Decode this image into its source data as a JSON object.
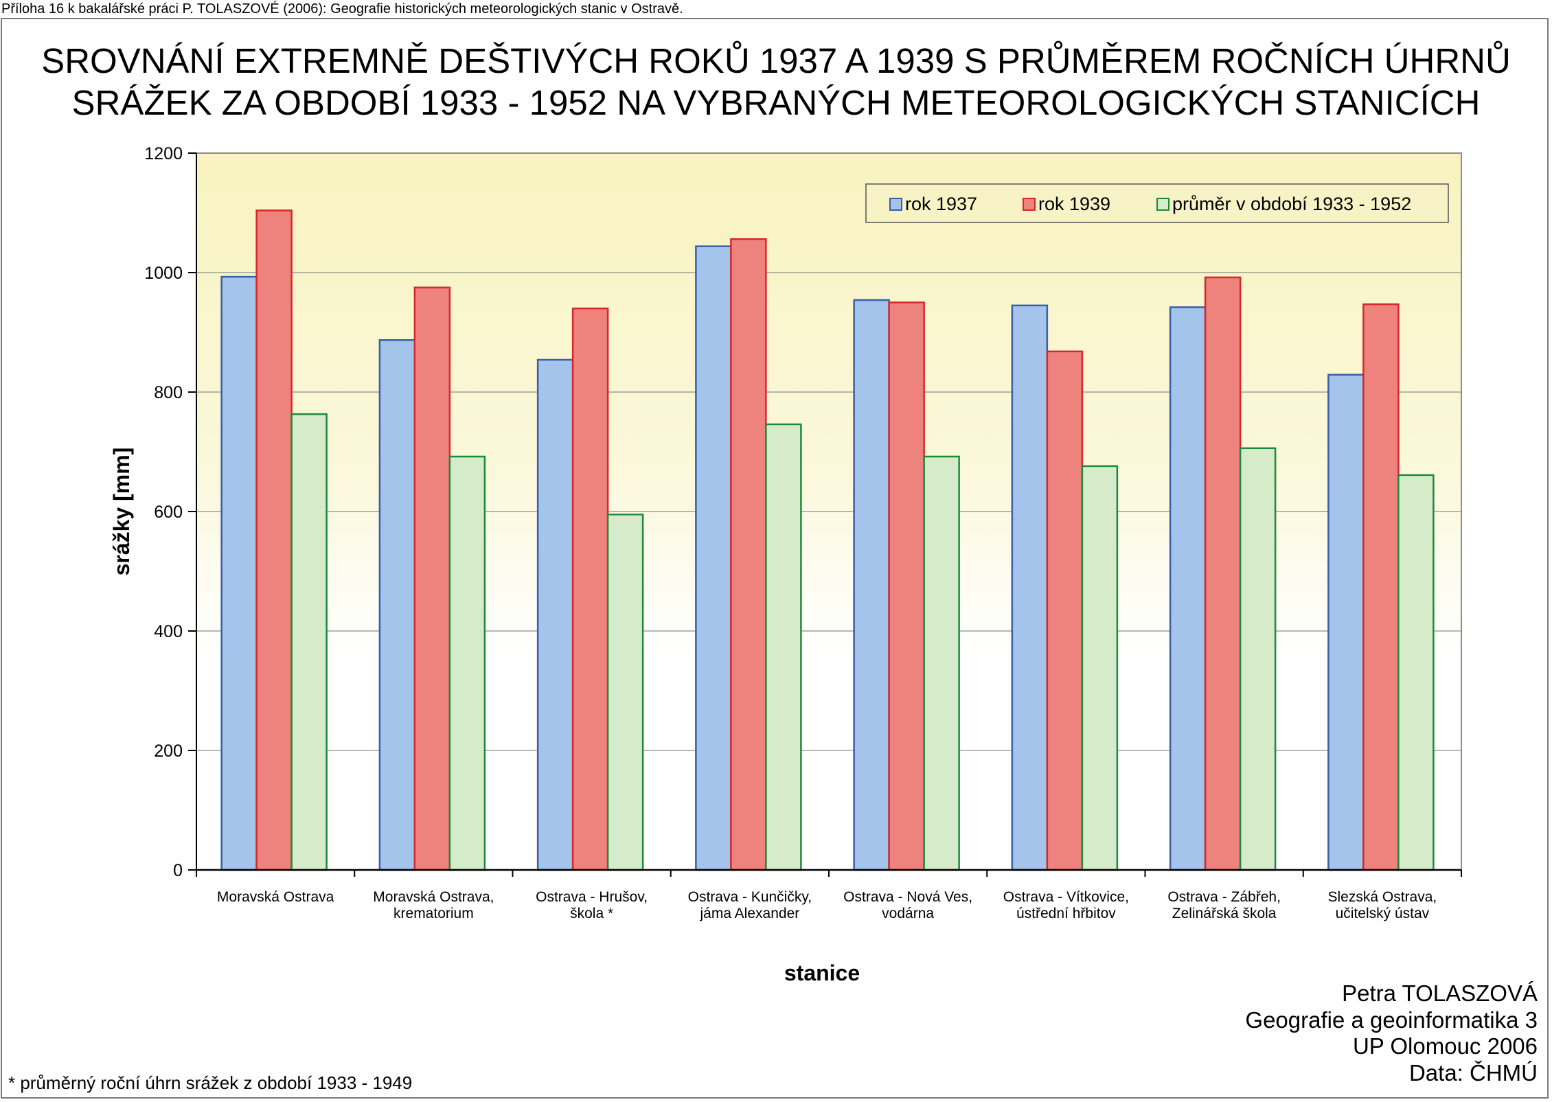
{
  "header_note": "Příloha 16 k bakalářské práci P. TOLASZOVÉ (2006): Geografie historických meteorologických stanic v Ostravě.",
  "title_lines": [
    "SROVNÁNÍ EXTREMNĚ DEŠTIVÝCH ROKŮ 1937 A 1939 S PRŮMĚREM ROČNÍCH ÚHRNŮ",
    "SRÁŽEK ZA OBDOBÍ 1933 - 1952 NA VYBRANÝCH METEOROLOGICKÝCH STANICÍCH"
  ],
  "author_lines": [
    "Petra TOLASZOVÁ",
    "Geografie a geoinformatika 3",
    "UP Olomouc 2006",
    "Data: ČHMÚ"
  ],
  "footnote": "* průměrný roční úhrn srážek z období 1933 - 1949",
  "colors": {
    "plot_bg_top": "#f8f3bf",
    "plot_bg_bottom": "#ffffff",
    "gridline": "#8c8c8c"
  },
  "chart_data": {
    "type": "bar",
    "title": "SROVNÁNÍ EXTREMNĚ DEŠTIVÝCH ROKŮ 1937 A 1939 S PRŮMĚREM ROČNÍCH ÚHRNŮ SRÁŽEK ZA OBDOBÍ 1933 - 1952 NA VYBRANÝCH METEOROLOGICKÝCH STANICÍCH",
    "xlabel": "stanice",
    "ylabel": "srážky [mm]",
    "ylim": [
      0,
      1200
    ],
    "yticks": [
      0,
      200,
      400,
      600,
      800,
      1000,
      1200
    ],
    "grid": true,
    "legend_position": "top-right",
    "categories": [
      [
        "Moravská Ostrava"
      ],
      [
        "Moravská Ostrava,",
        "krematorium"
      ],
      [
        "Ostrava - Hrušov,",
        "škola *"
      ],
      [
        "Ostrava - Kunčičky,",
        "jáma Alexander"
      ],
      [
        "Ostrava - Nová Ves,",
        "vodárna"
      ],
      [
        "Ostrava - Vítkovice,",
        "ústřední hřbitov"
      ],
      [
        "Ostrava - Zábřeh,",
        "Zelinářská škola"
      ],
      [
        "Slezská Ostrava,",
        "učitelský ústav"
      ]
    ],
    "series": [
      {
        "name": "rok 1937",
        "fill": "#a4c4eb",
        "stroke": "#3a5ea8",
        "values": [
          993,
          887,
          854,
          1044,
          954,
          945,
          942,
          829
        ]
      },
      {
        "name": "rok 1939",
        "fill": "#ee837d",
        "stroke": "#d62828",
        "values": [
          1104,
          975,
          940,
          1056,
          950,
          868,
          992,
          947
        ]
      },
      {
        "name": "průměr v období 1933 - 1952",
        "fill": "#d6ebc9",
        "stroke": "#1d8a3a",
        "values": [
          763,
          692,
          595,
          746,
          692,
          676,
          706,
          661
        ]
      }
    ]
  }
}
